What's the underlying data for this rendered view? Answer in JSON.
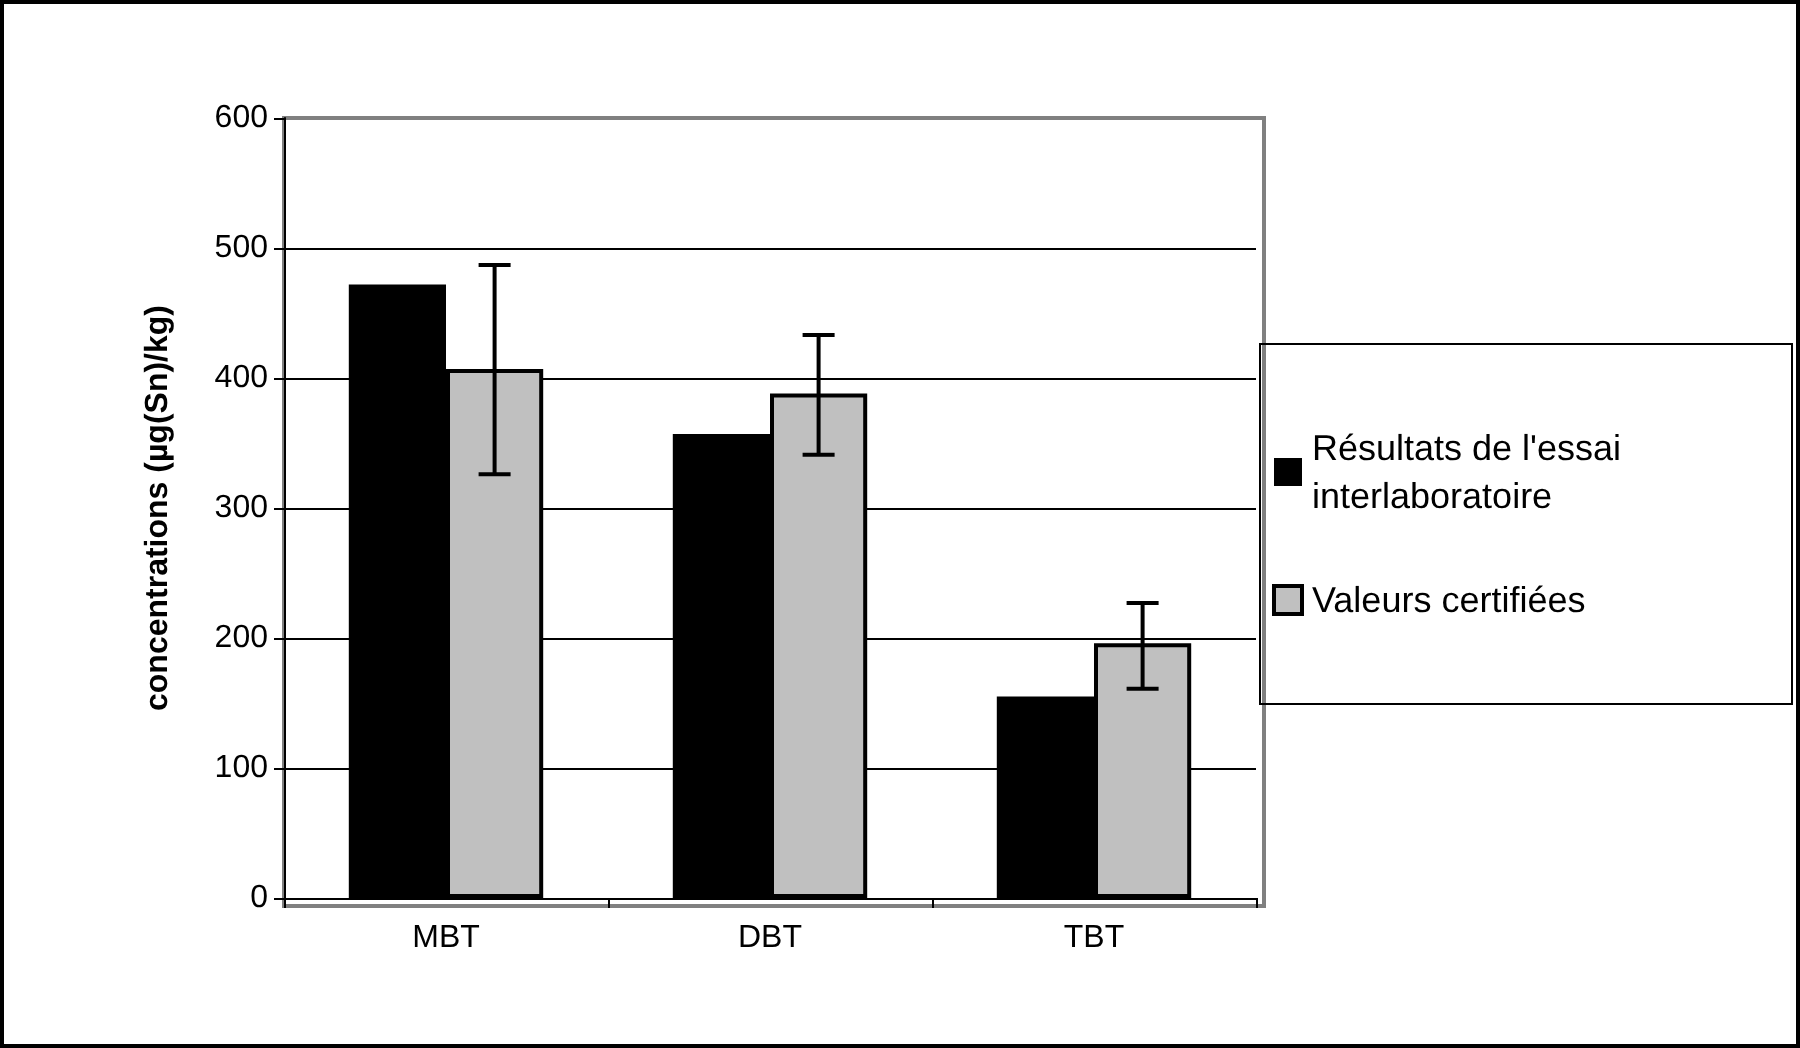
{
  "chart_data": {
    "type": "bar",
    "ylabel": "concentrations (µg(Sn)/kg)",
    "categories": [
      "MBT",
      "DBT",
      "TBT"
    ],
    "series": [
      {
        "name": "Résultats de l'essai interlaboratoire",
        "color": "#000000",
        "values": [
          472,
          357,
          155
        ]
      },
      {
        "name": "Valeurs certifiées",
        "color": "#c0c0c0",
        "values": [
          407,
          388,
          196
        ],
        "errors": [
          [
            326,
            487
          ],
          [
            341,
            433
          ],
          [
            161,
            227
          ]
        ]
      }
    ],
    "ylim": [
      0,
      600
    ],
    "yticks": [
      0,
      100,
      200,
      300,
      400,
      500,
      600
    ],
    "grid": "y",
    "legend": "right"
  }
}
